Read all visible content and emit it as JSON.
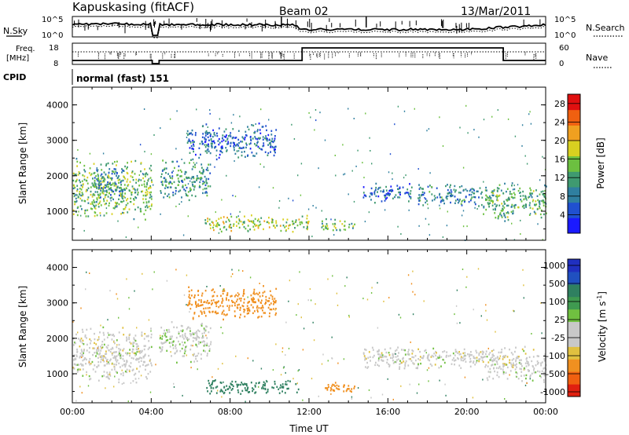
{
  "header": {
    "station": "Kapuskasing (fitACF)",
    "beam": "Beam 02",
    "date": "13/Mar/2011"
  },
  "top_panel": {
    "left_label": "N.Sky",
    "right_label": "N.Search",
    "left_ticks": [
      "10^5",
      "10^0"
    ],
    "right_ticks": [
      "10^5",
      "10^0"
    ]
  },
  "freq_panel": {
    "left_label_line1": "Freq.",
    "left_label_line2": "[MHz]",
    "right_label": "Nave",
    "left_ticks": [
      "18",
      "8"
    ],
    "right_ticks": [
      "60",
      "0"
    ]
  },
  "cpid": {
    "label": "CPID",
    "value": "normal (fast) 151"
  },
  "chart_data": [
    {
      "type": "heatmap",
      "name": "Power",
      "ylabel": "Slant Range [km]",
      "xlabel": "",
      "x_range_hours": [
        0,
        24
      ],
      "y_range_km": [
        180,
        4500
      ],
      "yticks": [
        "1000",
        "2000",
        "3000",
        "4000"
      ],
      "colorbar": {
        "label": "Power [dB]",
        "ticks": [
          "28",
          "24",
          "20",
          "16",
          "12",
          "8",
          "4"
        ],
        "range": [
          0,
          30
        ]
      },
      "echo_regions": [
        {
          "t0": 0.0,
          "t1": 4.0,
          "r0": 700,
          "r1": 2500,
          "level": 14
        },
        {
          "t0": 1.0,
          "t1": 2.6,
          "r0": 1300,
          "r1": 2300,
          "level": 8
        },
        {
          "t0": 4.4,
          "t1": 7.0,
          "r0": 1300,
          "r1": 2500,
          "level": 10
        },
        {
          "t0": 5.8,
          "t1": 10.3,
          "r0": 2400,
          "r1": 3500,
          "level": 6
        },
        {
          "t0": 6.7,
          "t1": 12.0,
          "r0": 400,
          "r1": 900,
          "level": 16
        },
        {
          "t0": 12.6,
          "t1": 14.3,
          "r0": 400,
          "r1": 800,
          "level": 14
        },
        {
          "t0": 14.7,
          "t1": 17.2,
          "r0": 1200,
          "r1": 1800,
          "level": 6
        },
        {
          "t0": 17.5,
          "t1": 20.8,
          "r0": 1100,
          "r1": 1800,
          "level": 8
        },
        {
          "t0": 20.8,
          "t1": 24.0,
          "r0": 700,
          "r1": 1900,
          "level": 12
        }
      ]
    },
    {
      "type": "heatmap",
      "name": "Velocity",
      "ylabel": "Slant Range [km]",
      "xlabel": "Time UT",
      "x_range_hours": [
        0,
        24
      ],
      "y_range_km": [
        180,
        4500
      ],
      "yticks": [
        "1000",
        "2000",
        "3000",
        "4000"
      ],
      "xticks": [
        "00:00",
        "04:00",
        "08:00",
        "12:00",
        "16:00",
        "20:00",
        "00:00"
      ],
      "colorbar": {
        "label": "Velocity [m s^-1]",
        "ticks": [
          "1000",
          "500",
          "100",
          "25",
          "-25",
          "-100",
          "-500",
          "-1000"
        ]
      },
      "echo_regions": [
        {
          "t0": 0.0,
          "t1": 4.0,
          "r0": 700,
          "r1": 2400,
          "velocity": 0
        },
        {
          "t0": 4.4,
          "t1": 7.0,
          "r0": 1300,
          "r1": 2500,
          "velocity": 10
        },
        {
          "t0": 5.8,
          "t1": 10.3,
          "r0": 2500,
          "r1": 3500,
          "velocity": -150
        },
        {
          "t0": 6.7,
          "t1": 11.5,
          "r0": 400,
          "r1": 850,
          "velocity": 150
        },
        {
          "t0": 12.6,
          "t1": 14.3,
          "r0": 400,
          "r1": 800,
          "velocity": -300
        },
        {
          "t0": 14.7,
          "t1": 21.0,
          "r0": 1100,
          "r1": 1800,
          "velocity": 0
        },
        {
          "t0": 21.0,
          "t1": 24.0,
          "r0": 700,
          "r1": 1800,
          "velocity": 0
        }
      ]
    }
  ]
}
